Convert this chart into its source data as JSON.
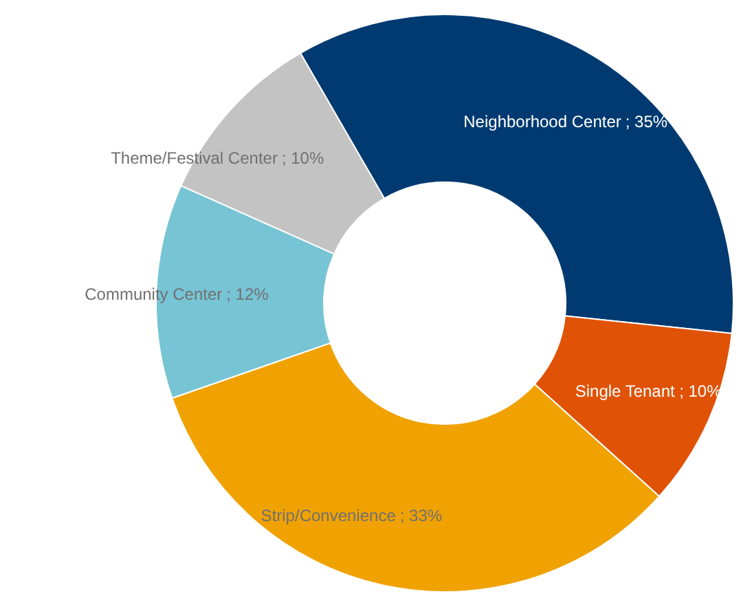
{
  "chart_data": {
    "type": "donut",
    "categories": [
      "Neighborhood Center",
      "Single Tenant",
      "Strip/Convenience",
      "Community Center",
      "Theme/Festival Center"
    ],
    "values": [
      35,
      10,
      33,
      12,
      10
    ],
    "colors": [
      "#003a70",
      "#e05206",
      "#f0a202",
      "#77c4d5",
      "#c3c3c3"
    ],
    "value_labels": [
      "; 35%",
      "; 10%",
      "; 33%",
      "; 12%",
      "; 10%"
    ]
  }
}
